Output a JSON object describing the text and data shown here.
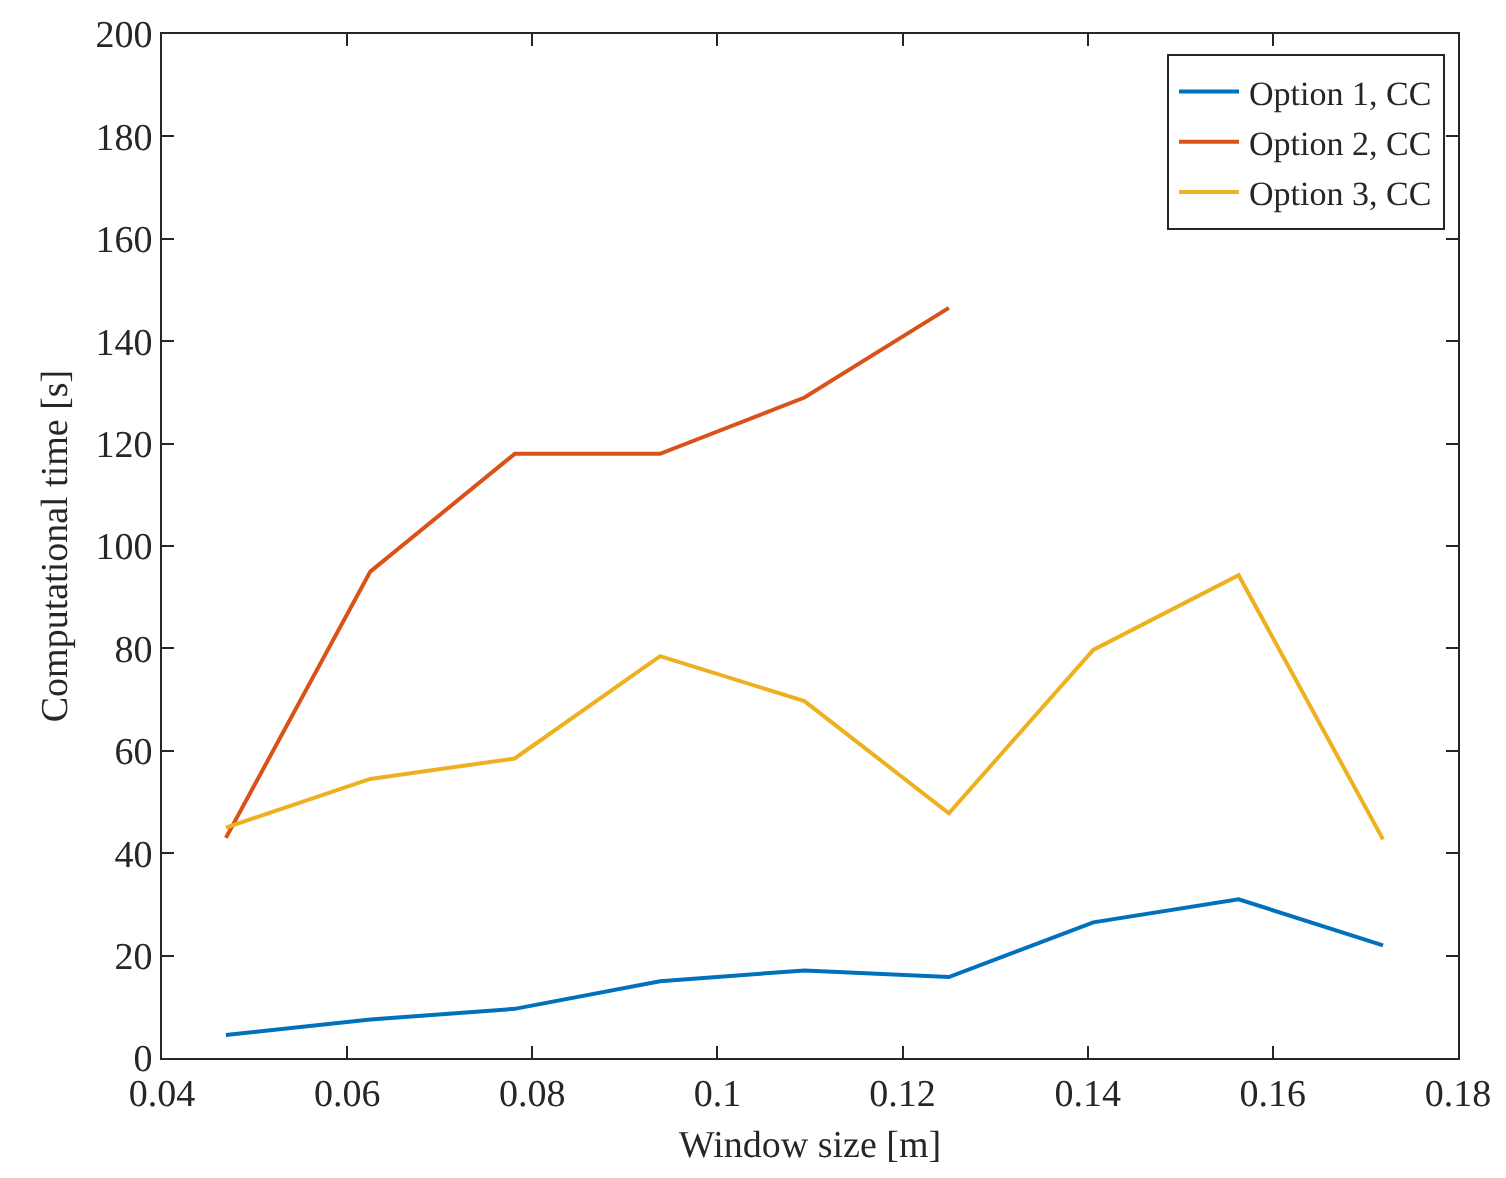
{
  "chart_data": {
    "type": "line",
    "xlabel": "Window size [m]",
    "ylabel": "Computational time [s]",
    "x": [
      0.0469,
      0.0625,
      0.0781,
      0.0938,
      0.1094,
      0.125,
      0.1406,
      0.1563,
      0.1719
    ],
    "series": [
      {
        "name": "Option 1, CC",
        "color": "#0072bd",
        "values": [
          4.5,
          7.5,
          9.6,
          15,
          17.1,
          15.8,
          26.5,
          31,
          22
        ]
      },
      {
        "name": "Option 2, CC",
        "color": "#d95319",
        "values": [
          43,
          95,
          118,
          118,
          129,
          146.5,
          null,
          null,
          null
        ]
      },
      {
        "name": "Option 3, CC",
        "color": "#edb120",
        "values": [
          45,
          54.5,
          58.5,
          78.5,
          69.7,
          47.8,
          79.7,
          94.3,
          42.7
        ]
      }
    ],
    "xlim": [
      0.04,
      0.18
    ],
    "xticks": [
      0.04,
      0.06,
      0.08,
      0.1,
      0.12,
      0.14,
      0.16,
      0.18
    ],
    "ylim": [
      0,
      200
    ],
    "yticks": [
      0,
      20,
      40,
      60,
      80,
      100,
      120,
      140,
      160,
      180,
      200
    ],
    "grid": false,
    "legend": "top right",
    "marker": "none",
    "line_style": "solid"
  }
}
